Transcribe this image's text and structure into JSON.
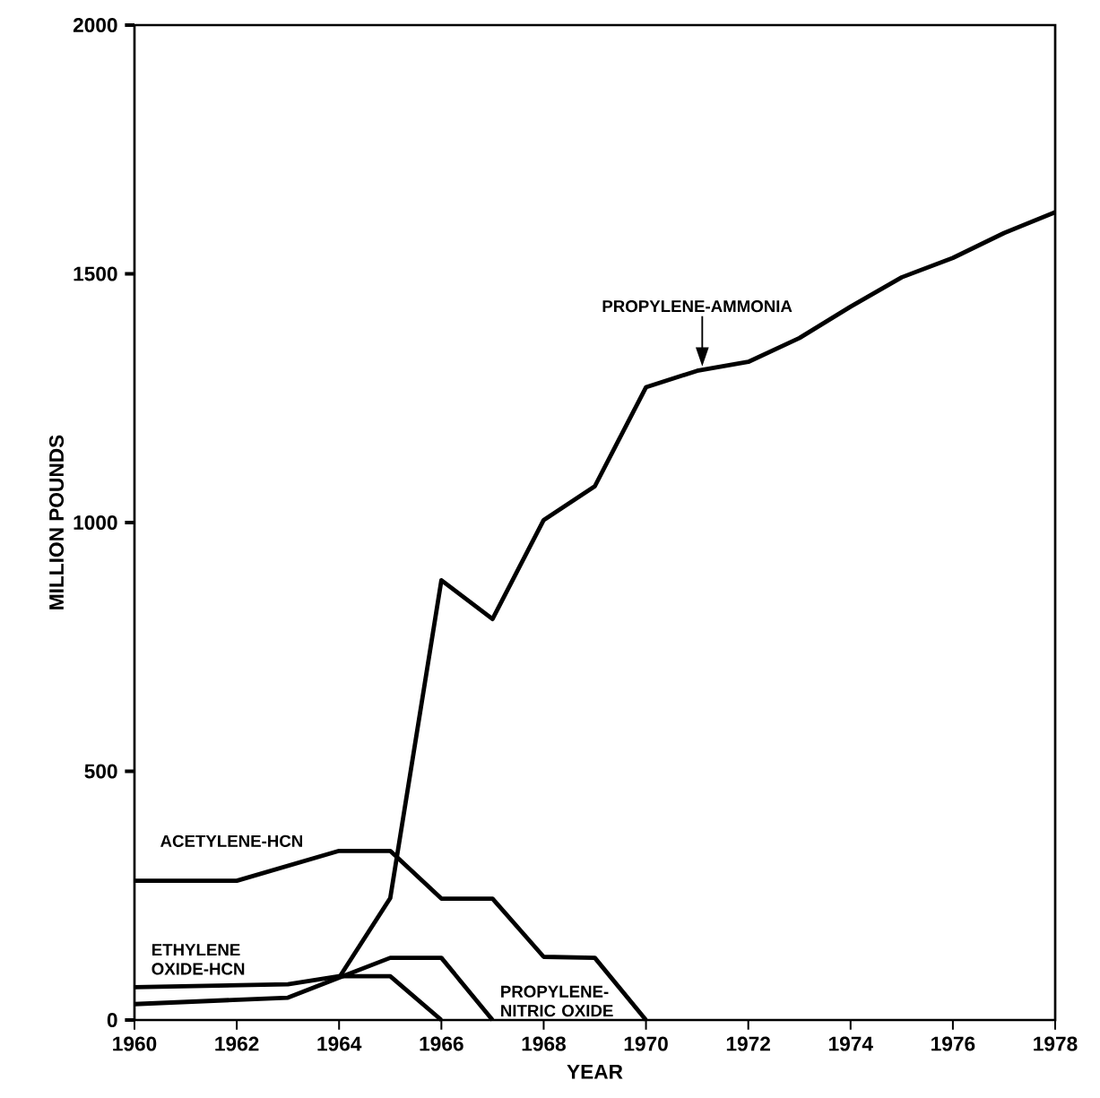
{
  "chart_data": {
    "type": "line",
    "xlabel": "YEAR",
    "ylabel": "MILLION POUNDS",
    "xlim": [
      1960,
      1978
    ],
    "xticks": [
      1960,
      1962,
      1964,
      1966,
      1968,
      1970,
      1972,
      1974,
      1976,
      1978
    ],
    "ylim": [
      0,
      2000
    ],
    "yticks": [
      0,
      500,
      1000,
      1500,
      2000
    ],
    "series": [
      {
        "name": "PROPYLENE-AMMONIA",
        "color": "#000000",
        "x": [
          1964,
          1965,
          1966,
          1967,
          1968,
          1969,
          1970,
          1971,
          1972,
          1973,
          1974,
          1975,
          1976,
          1977,
          1978
        ],
        "values": [
          85,
          245,
          884,
          806,
          1005,
          1073,
          1272,
          1305,
          1323,
          1371,
          1434,
          1493,
          1532,
          1582,
          1624
        ]
      },
      {
        "name": "ACETYLENE-HCN",
        "color": "#000000",
        "x": [
          1960,
          1962,
          1964,
          1965,
          1966,
          1967,
          1968,
          1969,
          1970
        ],
        "values": [
          280,
          280,
          340,
          340,
          244,
          244,
          127,
          125,
          0
        ]
      },
      {
        "name": "ETHYLENE OXIDE-HCN",
        "color": "#000000",
        "x": [
          1960,
          1963,
          1964,
          1965,
          1966
        ],
        "values": [
          66,
          72,
          88,
          88,
          0
        ]
      },
      {
        "name": "PROPYLENE-NITRIC OXIDE",
        "color": "#000000",
        "x": [
          1960,
          1963,
          1964,
          1965,
          1966,
          1967
        ],
        "values": [
          32,
          45,
          85,
          125,
          125,
          0
        ]
      }
    ]
  }
}
